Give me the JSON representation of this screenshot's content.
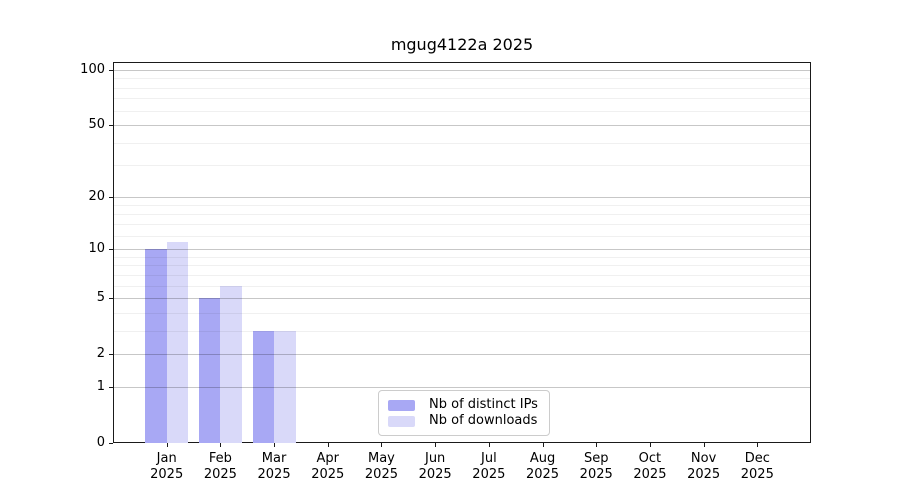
{
  "chart_data": {
    "type": "bar",
    "title": "mgug4122a 2025",
    "year_label": "2025",
    "categories": [
      "Jan",
      "Feb",
      "Mar",
      "Apr",
      "May",
      "Jun",
      "Jul",
      "Aug",
      "Sep",
      "Oct",
      "Nov",
      "Dec"
    ],
    "series": [
      {
        "name": "Nb of distinct IPs",
        "color": "#a8a8f4",
        "values": [
          10,
          5,
          3,
          0,
          0,
          0,
          0,
          0,
          0,
          0,
          0,
          0
        ]
      },
      {
        "name": "Nb of downloads",
        "color": "#d9d9f9",
        "values": [
          11,
          6,
          3,
          0,
          0,
          0,
          0,
          0,
          0,
          0,
          0,
          0
        ]
      }
    ],
    "y_axis": {
      "scale": "log1p",
      "max": 100,
      "major_ticks": [
        0,
        1,
        2,
        5,
        10,
        20,
        50,
        100
      ],
      "minor_gridlines": [
        3,
        4,
        6,
        7,
        8,
        9,
        12,
        14,
        16,
        18,
        30,
        40,
        60,
        70,
        80,
        90
      ]
    },
    "grid": {
      "major_color": "rgba(0,0,0,0.22)",
      "minor_color": "rgba(0,0,0,0.06)"
    },
    "legend": {
      "position": "lower center",
      "border_color": "#cccccc"
    }
  }
}
